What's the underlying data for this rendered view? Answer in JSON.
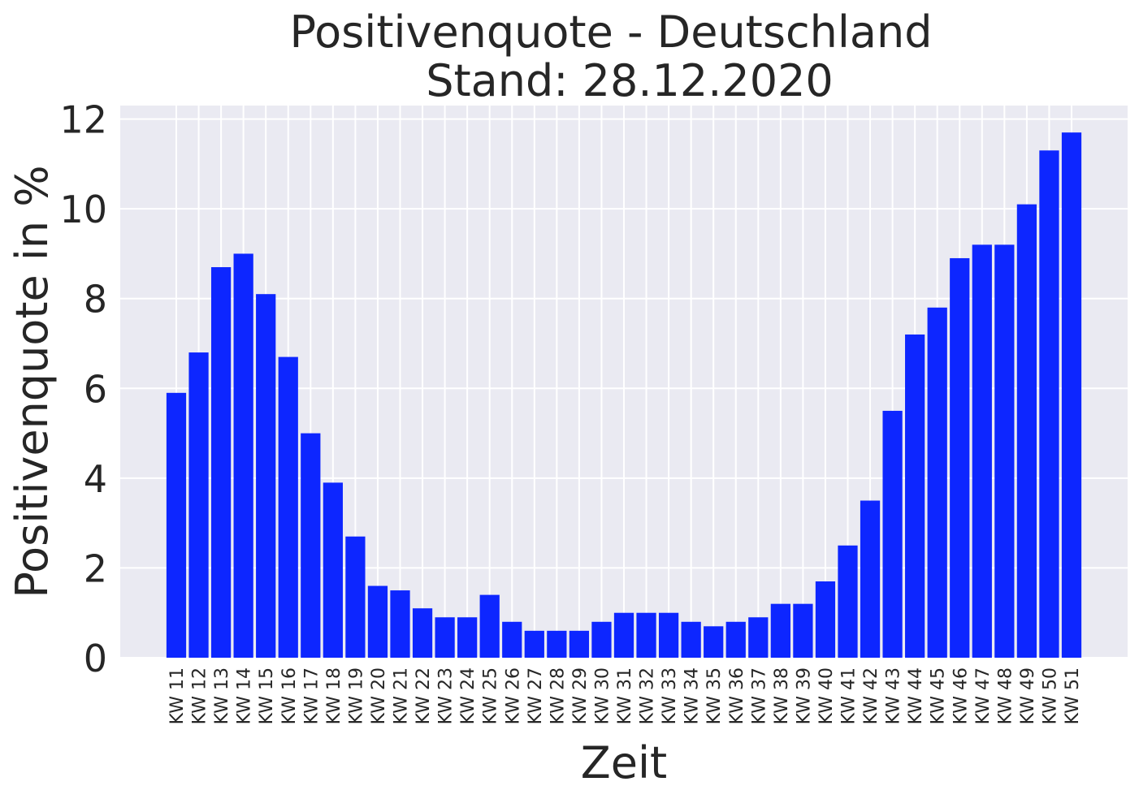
{
  "chart_data": {
    "type": "bar",
    "title": "Positivenquote - Deutschland",
    "subtitle": "Stand: 28.12.2020",
    "xlabel": "Zeit",
    "ylabel": "Positivenquote in %",
    "ylim": [
      0,
      12.3
    ],
    "yticks": [
      "0",
      "2",
      "4",
      "6",
      "8",
      "10",
      "12"
    ],
    "grid": true,
    "categories": [
      "KW 11",
      "KW 12",
      "KW 13",
      "KW 14",
      "KW 15",
      "KW 16",
      "KW 17",
      "KW 18",
      "KW 19",
      "KW 20",
      "KW 21",
      "KW 22",
      "KW 23",
      "KW 24",
      "KW 25",
      "KW 26",
      "KW 27",
      "KW 28",
      "KW 29",
      "KW 30",
      "KW 31",
      "KW 32",
      "KW 33",
      "KW 34",
      "KW 35",
      "KW 36",
      "KW 37",
      "KW 38",
      "KW 39",
      "KW 40",
      "KW 41",
      "KW 42",
      "KW 43",
      "KW 44",
      "KW 45",
      "KW 46",
      "KW 47",
      "KW 48",
      "KW 49",
      "KW 50",
      "KW 51"
    ],
    "values": [
      5.9,
      6.8,
      8.7,
      9.0,
      8.1,
      6.7,
      5.0,
      3.9,
      2.7,
      1.6,
      1.5,
      1.1,
      0.9,
      0.9,
      1.4,
      0.8,
      0.6,
      0.6,
      0.6,
      0.8,
      1.0,
      1.0,
      1.0,
      0.8,
      0.7,
      0.8,
      0.9,
      1.2,
      1.2,
      1.7,
      2.5,
      3.5,
      5.5,
      7.2,
      7.8,
      8.9,
      9.2,
      9.2,
      10.1,
      11.3,
      11.7
    ],
    "colors": {
      "bar": "#0d26ff",
      "background": "#eaeaf2",
      "grid": "#ffffff",
      "text": "#262626"
    }
  }
}
